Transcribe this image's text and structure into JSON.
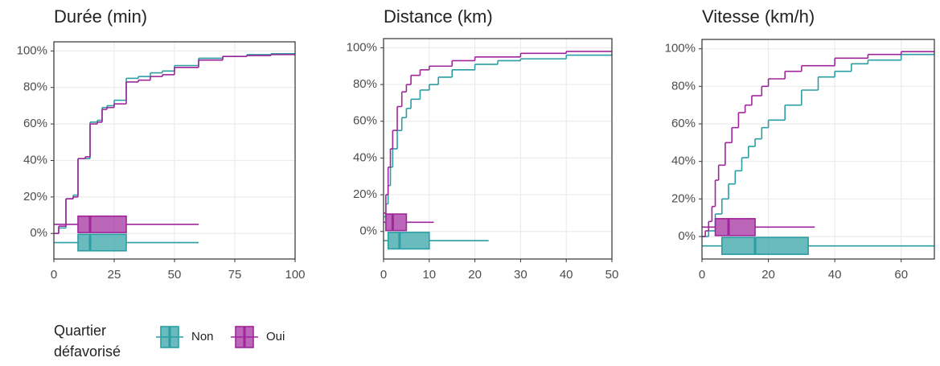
{
  "chart_data": [
    {
      "type": "ecdf",
      "title": "Durée (min)",
      "xlim": [
        0,
        100
      ],
      "xticks": [
        0,
        25,
        50,
        75,
        100
      ],
      "ylim": [
        -14,
        105
      ],
      "yticks": [
        {
          "value": 0,
          "label": "0%"
        },
        {
          "value": 20,
          "label": "20%"
        },
        {
          "value": 40,
          "label": "40%"
        },
        {
          "value": 60,
          "label": "60%"
        },
        {
          "value": 80,
          "label": "80%"
        },
        {
          "value": 100,
          "label": "100%"
        }
      ],
      "grid": true,
      "series": [
        {
          "name": "Non",
          "color": "#2a9ea3",
          "x": [
            0,
            2,
            5,
            8,
            10,
            13,
            15,
            18,
            20,
            22,
            25,
            30,
            35,
            40,
            45,
            50,
            60,
            70,
            80,
            90,
            100
          ],
          "values": [
            0,
            3,
            19,
            21,
            41,
            41,
            61,
            62,
            69,
            70,
            73,
            85,
            86,
            88,
            89,
            92,
            96,
            97,
            98,
            98.5,
            99
          ],
          "box": {
            "min": 0,
            "q1": 10,
            "median": 15,
            "q3": 30,
            "max": 60
          }
        },
        {
          "name": "Oui",
          "color": "#a0259b",
          "x": [
            0,
            2,
            5,
            8,
            10,
            13,
            15,
            18,
            20,
            22,
            25,
            30,
            35,
            40,
            45,
            50,
            60,
            70,
            80,
            90,
            100
          ],
          "values": [
            0,
            4,
            19,
            20,
            41,
            42,
            60,
            61,
            68,
            69,
            71,
            83,
            84,
            86,
            87,
            91,
            95,
            97,
            97.5,
            98,
            98.5
          ],
          "box": {
            "min": 0,
            "q1": 10,
            "median": 15,
            "q3": 30,
            "max": 60
          }
        }
      ]
    },
    {
      "type": "ecdf",
      "title": "Distance (km)",
      "xlim": [
        0,
        50
      ],
      "xticks": [
        0,
        10,
        20,
        30,
        40,
        50
      ],
      "ylim": [
        -15,
        105
      ],
      "yticks": [
        {
          "value": 0,
          "label": "0%"
        },
        {
          "value": 20,
          "label": "20%"
        },
        {
          "value": 40,
          "label": "40%"
        },
        {
          "value": 60,
          "label": "60%"
        },
        {
          "value": 80,
          "label": "80%"
        },
        {
          "value": 100,
          "label": "100%"
        }
      ],
      "grid": true,
      "series": [
        {
          "name": "Non",
          "color": "#2a9ea3",
          "x": [
            0,
            0.5,
            1,
            1.5,
            2,
            3,
            4,
            5,
            6,
            8,
            10,
            12,
            15,
            20,
            25,
            30,
            40,
            50
          ],
          "values": [
            8,
            15,
            25,
            35,
            45,
            55,
            62,
            67,
            72,
            77,
            80,
            84,
            88,
            91,
            93,
            94,
            96,
            97
          ],
          "box": {
            "min": 0,
            "q1": 1,
            "median": 3.5,
            "q3": 10,
            "max": 23
          }
        },
        {
          "name": "Oui",
          "color": "#a0259b",
          "x": [
            0,
            0.5,
            1,
            1.5,
            2,
            3,
            4,
            5,
            6,
            8,
            10,
            15,
            20,
            30,
            40,
            50
          ],
          "values": [
            10,
            20,
            35,
            45,
            55,
            68,
            76,
            80,
            85,
            88,
            90,
            93,
            95,
            97,
            98,
            98.5
          ],
          "box": {
            "min": 0,
            "q1": 0.5,
            "median": 2,
            "q3": 5,
            "max": 11
          }
        }
      ]
    },
    {
      "type": "ecdf",
      "title": "Vitesse (km/h)",
      "xlim": [
        0,
        70
      ],
      "xticks": [
        0,
        20,
        40,
        60
      ],
      "ylim": [
        -12,
        105
      ],
      "yticks": [
        {
          "value": 0,
          "label": "0%"
        },
        {
          "value": 20,
          "label": "20%"
        },
        {
          "value": 40,
          "label": "40%"
        },
        {
          "value": 60,
          "label": "60%"
        },
        {
          "value": 80,
          "label": "80%"
        },
        {
          "value": 100,
          "label": "100%"
        }
      ],
      "grid": true,
      "series": [
        {
          "name": "Non",
          "color": "#2a9ea3",
          "x": [
            0,
            2,
            4,
            6,
            8,
            10,
            12,
            14,
            16,
            18,
            20,
            25,
            30,
            35,
            40,
            45,
            50,
            60,
            70
          ],
          "values": [
            0,
            3,
            12,
            20,
            28,
            35,
            42,
            48,
            52,
            58,
            62,
            70,
            78,
            85,
            88,
            92,
            94,
            97,
            98
          ],
          "box": {
            "min": 0,
            "q1": 6,
            "median": 16,
            "q3": 32,
            "max": 70
          }
        },
        {
          "name": "Oui",
          "color": "#a0259b",
          "x": [
            0,
            1,
            2,
            3,
            4,
            5,
            7,
            9,
            11,
            13,
            15,
            18,
            20,
            25,
            30,
            40,
            50,
            60,
            70
          ],
          "values": [
            0,
            3,
            8,
            16,
            30,
            38,
            50,
            58,
            66,
            70,
            75,
            80,
            84,
            88,
            91,
            95,
            97,
            98.5,
            99
          ],
          "box": {
            "min": 0,
            "q1": 4,
            "median": 8,
            "q3": 16,
            "max": 34
          }
        }
      ]
    }
  ],
  "legend_title": [
    "Quartier",
    "défavorisé"
  ]
}
